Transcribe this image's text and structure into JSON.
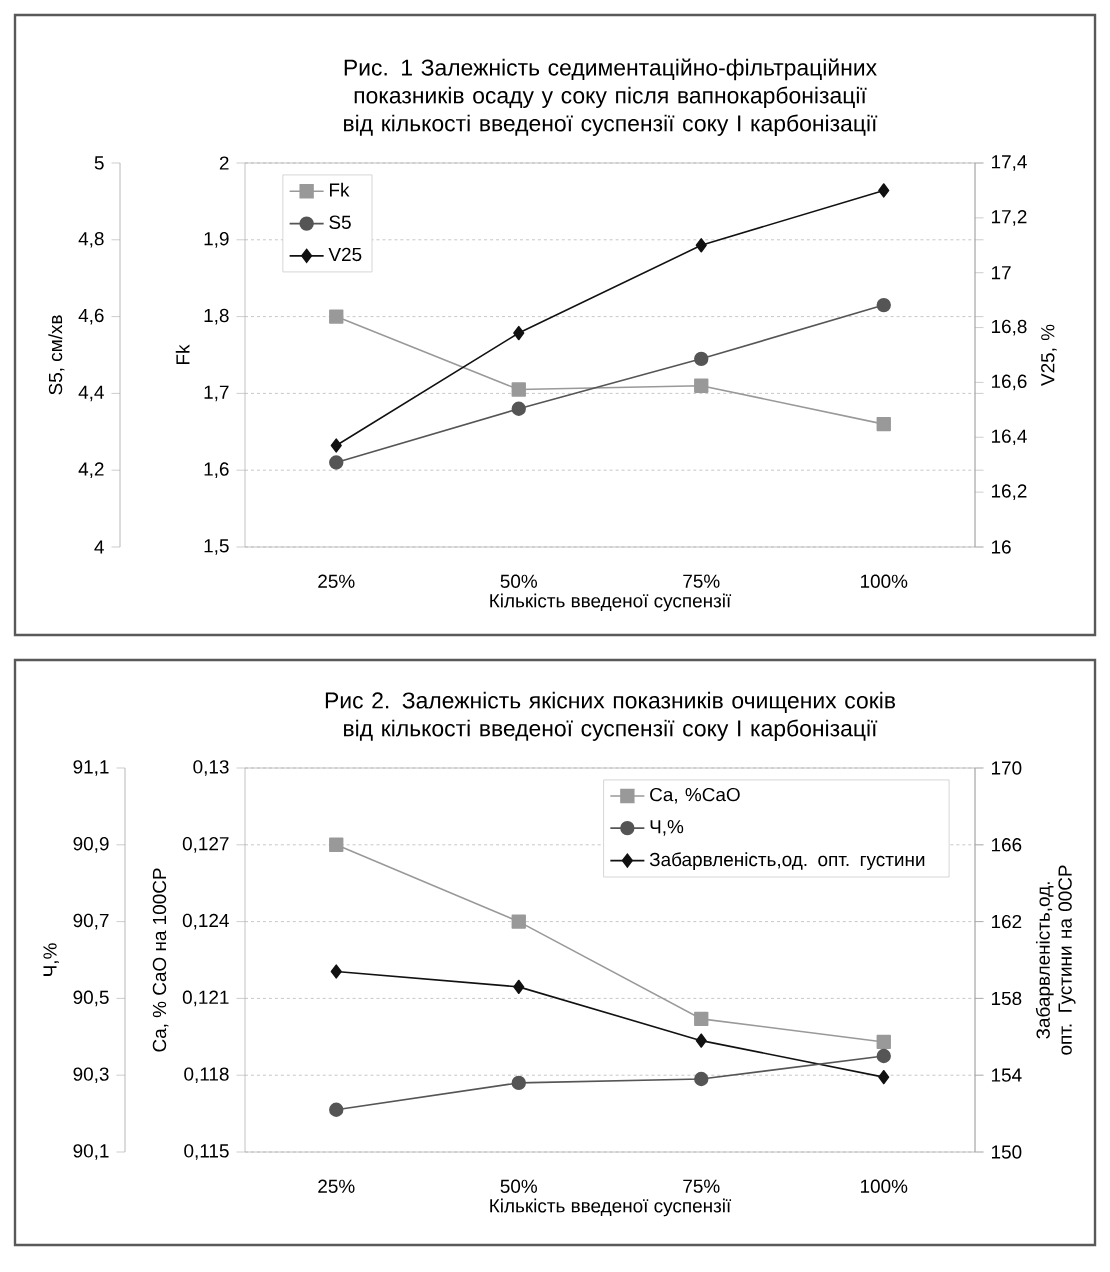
{
  "chart_data": [
    {
      "type": "line",
      "title": "Рис. 1 Залежність седиментаційно-фільтраційних показників осаду у соку після вапнокарбонізації від кількості введеної суспензії соку I карбонізації",
      "categories": [
        "25%",
        "50%",
        "75%",
        "100%"
      ],
      "xlabel": "Кількість введеної суспензії",
      "ylabel": "Fk",
      "y2label": "V25, %",
      "y3label": "S5, см/хв",
      "ylim": [
        1.5,
        2
      ],
      "yticks": [
        {
          "value": 1.5,
          "label": "1,5"
        },
        {
          "value": 1.6,
          "label": "1,6"
        },
        {
          "value": 1.7,
          "label": "1,7"
        },
        {
          "value": 1.8,
          "label": "1,8"
        },
        {
          "value": 1.9,
          "label": "1,9"
        },
        2
      ],
      "y2lim": [
        16,
        17.4
      ],
      "y2ticks": [
        16,
        {
          "value": 16.2,
          "label": "16,2"
        },
        {
          "value": 16.4,
          "label": "16,4"
        },
        {
          "value": 16.6,
          "label": "16,6"
        },
        {
          "value": 16.8,
          "label": "16,8"
        },
        17,
        {
          "value": 17.2,
          "label": "17,2"
        },
        {
          "value": 17.4,
          "label": "17,4"
        }
      ],
      "y3lim": [
        4,
        5
      ],
      "y3ticks": [
        4,
        {
          "value": 4.2,
          "label": "4,2"
        },
        {
          "value": 4.4,
          "label": "4,4"
        },
        {
          "value": 4.6,
          "label": "4,6"
        },
        {
          "value": 4.8,
          "label": "4,8"
        },
        5
      ],
      "grid": "y",
      "legend": "top left",
      "series": [
        {
          "name": "Fk",
          "color": "#999999",
          "marker": "square",
          "axis": "y",
          "values": [
            1.8,
            1.705,
            1.71,
            1.66
          ]
        },
        {
          "name": "S5",
          "color": "#555555",
          "marker": "circle",
          "axis": "y3",
          "values": [
            4.22,
            4.36,
            4.49,
            4.63
          ]
        },
        {
          "name": "V25",
          "color": "#111111",
          "marker": "diamond",
          "axis": "y2",
          "values": [
            16.37,
            16.78,
            17.1,
            17.3
          ]
        }
      ]
    },
    {
      "type": "line",
      "title": "Рис 2. Залежність якісних показників очищених соків від кількості введеної суспензії соку I карбонізації",
      "categories": [
        "25%",
        "50%",
        "75%",
        "100%"
      ],
      "xlabel": "Кількість введеної суспензії",
      "ylabel": "Ca, % CaO на 100СР",
      "y2label": "Забарвленість,од. опт. Густини на 00СР",
      "y3label": "Ч,%",
      "ylim": [
        0.115,
        0.13
      ],
      "yticks": [
        {
          "value": 0.115,
          "label": "0,115"
        },
        {
          "value": 0.118,
          "label": "0,118"
        },
        {
          "value": 0.121,
          "label": "0,121"
        },
        {
          "value": 0.124,
          "label": "0,124"
        },
        {
          "value": 0.127,
          "label": "0,127"
        },
        {
          "value": 0.13,
          "label": "0,13"
        }
      ],
      "y2lim": [
        150,
        170
      ],
      "y2ticks": [
        150,
        154,
        158,
        162,
        166,
        170
      ],
      "y3lim": [
        90.1,
        91.1
      ],
      "y3ticks": [
        {
          "value": 90.1,
          "label": "90,1"
        },
        {
          "value": 90.3,
          "label": "90,3"
        },
        {
          "value": 90.5,
          "label": "90,5"
        },
        {
          "value": 90.7,
          "label": "90,7"
        },
        {
          "value": 90.9,
          "label": "90,9"
        },
        {
          "value": 91.1,
          "label": "91,1"
        }
      ],
      "grid": "y",
      "legend": "top right",
      "series": [
        {
          "name": "Ca, %CaO",
          "color": "#999999",
          "marker": "square",
          "axis": "y",
          "values": [
            0.127,
            0.124,
            0.1202,
            0.1193
          ]
        },
        {
          "name": "Ч,%",
          "color": "#555555",
          "marker": "circle",
          "axis": "y3",
          "values": [
            90.21,
            90.28,
            90.29,
            90.35
          ]
        },
        {
          "name": "Забарвленість,од. опт. густини",
          "color": "#111111",
          "marker": "diamond",
          "axis": "y2",
          "values": [
            159.4,
            158.6,
            155.8,
            153.9
          ]
        }
      ]
    }
  ]
}
